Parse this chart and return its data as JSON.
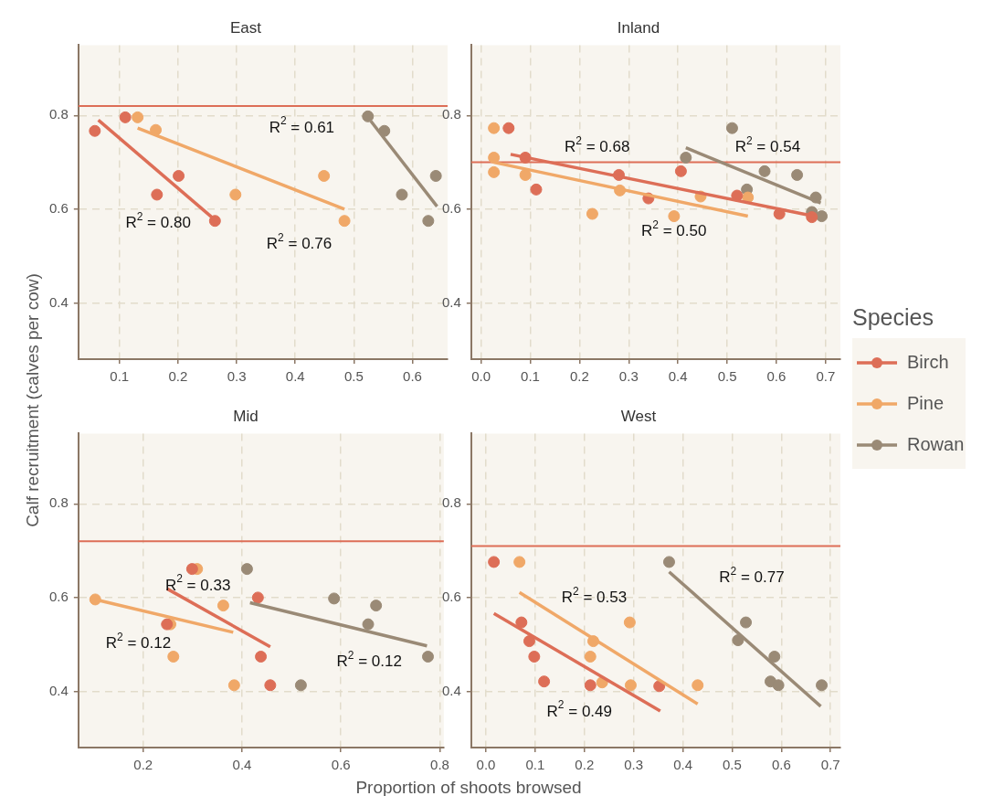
{
  "chart_data": [
    {
      "type": "scatter",
      "title": "East",
      "xlabel": "Proportion of shoots browsed",
      "ylabel": "Calf recruitment (calves per cow)",
      "legend": "right",
      "legend_title": "Species",
      "grid": true,
      "marker": "circle",
      "xlim": [
        0.03,
        0.66
      ],
      "xticks": [
        0.1,
        0.2,
        0.3,
        0.4,
        0.5,
        0.6
      ],
      "ylim": [
        0.28,
        0.95
      ],
      "yticks": [
        0.4,
        0.6,
        0.8
      ],
      "series": [
        {
          "name": "Birch",
          "color": "#dd6e57",
          "x": [
            0.058,
            0.11,
            0.164,
            0.201,
            0.263
          ],
          "values": [
            0.767,
            0.796,
            0.631,
            0.671,
            0.575
          ]
        },
        {
          "name": "Pine",
          "color": "#f0a868",
          "x": [
            0.131,
            0.162,
            0.298,
            0.449,
            0.484
          ],
          "values": [
            0.796,
            0.769,
            0.631,
            0.671,
            0.575
          ]
        },
        {
          "name": "Rowan",
          "color": "#9a8a76",
          "x": [
            0.524,
            0.552,
            0.582,
            0.64,
            0.627
          ],
          "values": [
            0.798,
            0.767,
            0.631,
            0.671,
            0.575
          ]
        },
        {
          "type": "line",
          "marker": "none",
          "color": "#dd6e57",
          "x": [
            0.064,
            0.263
          ],
          "values": [
            0.79,
            0.577
          ]
        },
        {
          "type": "line",
          "marker": "none",
          "color": "#f0a868",
          "x": [
            0.131,
            0.484
          ],
          "values": [
            0.773,
            0.6
          ]
        },
        {
          "type": "line",
          "marker": "none",
          "color": "#9a8a76",
          "x": [
            0.529,
            0.642
          ],
          "values": [
            0.788,
            0.606
          ]
        }
      ],
      "ref_lines": [
        {
          "axis": "y",
          "value": 0.82,
          "color": "#dd6e57"
        }
      ],
      "annotations": [
        "R$^{2}$ = 0.61",
        "R$^{2}$ = 0.80",
        "R$^{2}$ = 0.76"
      ]
    },
    {
      "type": "scatter",
      "title": "Inland",
      "grid": true,
      "marker": "circle",
      "xlim": [
        -0.02,
        0.73
      ],
      "xticks": [
        {
          "value": 0,
          "label": "0.0"
        },
        0.1,
        0.2,
        0.3,
        0.4,
        0.5,
        0.6,
        0.7
      ],
      "ylim": [
        0.28,
        0.95
      ],
      "yticks": [
        0.4,
        0.6,
        0.8
      ],
      "series": [
        {
          "color": "#dd6e57",
          "x": [
            0.056,
            0.09,
            0.112,
            0.28,
            0.34,
            0.406,
            0.52,
            0.606,
            0.672
          ],
          "values": [
            0.773,
            0.71,
            0.642,
            0.673,
            0.623,
            0.681,
            0.629,
            0.59,
            0.583
          ]
        },
        {
          "color": "#f0a868",
          "x": [
            0.026,
            0.026,
            0.026,
            0.09,
            0.226,
            0.282,
            0.392,
            0.446,
            0.542
          ],
          "values": [
            0.773,
            0.71,
            0.679,
            0.673,
            0.59,
            0.64,
            0.585,
            0.627,
            0.625
          ]
        },
        {
          "color": "#9a8a76",
          "x": [
            0.51,
            0.416,
            0.576,
            0.642,
            0.54,
            0.68,
            0.672,
            0.692
          ],
          "values": [
            0.773,
            0.71,
            0.681,
            0.673,
            0.642,
            0.625,
            0.594,
            0.585
          ]
        },
        {
          "type": "line",
          "marker": "none",
          "color": "#dd6e57",
          "x": [
            0.06,
            0.676
          ],
          "values": [
            0.717,
            0.585
          ]
        },
        {
          "type": "line",
          "marker": "none",
          "color": "#f0a868",
          "x": [
            0.026,
            0.542
          ],
          "values": [
            0.7,
            0.585
          ]
        },
        {
          "type": "line",
          "marker": "none",
          "color": "#9a8a76",
          "x": [
            0.416,
            0.69
          ],
          "values": [
            0.731,
            0.613
          ]
        }
      ],
      "ref_lines": [
        {
          "axis": "y",
          "value": 0.7,
          "color": "#dd6e57"
        }
      ],
      "annotations": [
        "R$^{2}$ = 0.68",
        "R$^{2}$ = 0.54",
        "R$^{2}$ = 0.50"
      ]
    },
    {
      "type": "scatter",
      "title": "Mid",
      "grid": true,
      "marker": "circle",
      "xlim": [
        0.069,
        0.808
      ],
      "xticks": [
        0.2,
        0.4,
        0.6,
        0.8
      ],
      "ylim": [
        0.28,
        0.95
      ],
      "yticks": [
        0.4,
        0.6,
        0.8
      ],
      "series": [
        {
          "color": "#dd6e57",
          "x": [
            0.299,
            0.248,
            0.432,
            0.438,
            0.457
          ],
          "values": [
            0.661,
            0.543,
            0.6,
            0.474,
            0.413
          ]
        },
        {
          "color": "#f0a868",
          "x": [
            0.103,
            0.309,
            0.255,
            0.362,
            0.261,
            0.384
          ],
          "values": [
            0.596,
            0.661,
            0.543,
            0.583,
            0.474,
            0.413
          ]
        },
        {
          "color": "#9a8a76",
          "x": [
            0.41,
            0.586,
            0.671,
            0.655,
            0.776,
            0.519
          ],
          "values": [
            0.661,
            0.598,
            0.583,
            0.543,
            0.474,
            0.413
          ]
        },
        {
          "type": "line",
          "marker": "none",
          "color": "#dd6e57",
          "x": [
            0.248,
            0.457
          ],
          "values": [
            0.619,
            0.495
          ]
        },
        {
          "type": "line",
          "marker": "none",
          "color": "#f0a868",
          "x": [
            0.103,
            0.382
          ],
          "values": [
            0.596,
            0.526
          ]
        },
        {
          "type": "line",
          "marker": "none",
          "color": "#9a8a76",
          "x": [
            0.416,
            0.774
          ],
          "values": [
            0.589,
            0.497
          ]
        }
      ],
      "ref_lines": [
        {
          "axis": "y",
          "value": 0.72,
          "color": "#dd6e57"
        }
      ],
      "annotations": [
        "R$^{2}$ = 0.33",
        "R$^{2}$ = 0.12",
        "R$^{2}$ = 0.12"
      ]
    },
    {
      "type": "scatter",
      "title": "West",
      "grid": true,
      "marker": "circle",
      "xlim": [
        -0.03,
        0.72
      ],
      "xticks": [
        {
          "value": 0,
          "label": "0.0"
        },
        0.1,
        0.2,
        0.3,
        0.4,
        0.5,
        0.6,
        0.7
      ],
      "ylim": [
        0.28,
        0.95
      ],
      "yticks": [
        0.4,
        0.6,
        0.8
      ],
      "series": [
        {
          "color": "#dd6e57",
          "x": [
            0.016,
            0.072,
            0.088,
            0.098,
            0.118,
            0.212,
            0.352
          ],
          "values": [
            0.676,
            0.547,
            0.507,
            0.474,
            0.421,
            0.413,
            0.411
          ]
        },
        {
          "color": "#f0a868",
          "x": [
            0.068,
            0.292,
            0.218,
            0.212,
            0.236,
            0.294,
            0.43
          ],
          "values": [
            0.676,
            0.547,
            0.507,
            0.474,
            0.419,
            0.413,
            0.413
          ]
        },
        {
          "color": "#9a8a76",
          "x": [
            0.372,
            0.528,
            0.512,
            0.586,
            0.578,
            0.594,
            0.682
          ],
          "values": [
            0.676,
            0.547,
            0.509,
            0.474,
            0.421,
            0.413,
            0.413
          ]
        },
        {
          "type": "line",
          "marker": "none",
          "color": "#dd6e57",
          "x": [
            0.016,
            0.354
          ],
          "values": [
            0.566,
            0.358
          ]
        },
        {
          "type": "line",
          "marker": "none",
          "color": "#f0a868",
          "x": [
            0.068,
            0.43
          ],
          "values": [
            0.611,
            0.373
          ]
        },
        {
          "type": "line",
          "marker": "none",
          "color": "#9a8a76",
          "x": [
            0.372,
            0.68
          ],
          "values": [
            0.655,
            0.368
          ]
        }
      ],
      "ref_lines": [
        {
          "axis": "y",
          "value": 0.71,
          "color": "#dd6e57"
        }
      ],
      "annotations": [
        "R$^{2}$ = 0.53",
        "R$^{2}$ = 0.77",
        "R$^{2}$ = 0.49"
      ]
    }
  ]
}
